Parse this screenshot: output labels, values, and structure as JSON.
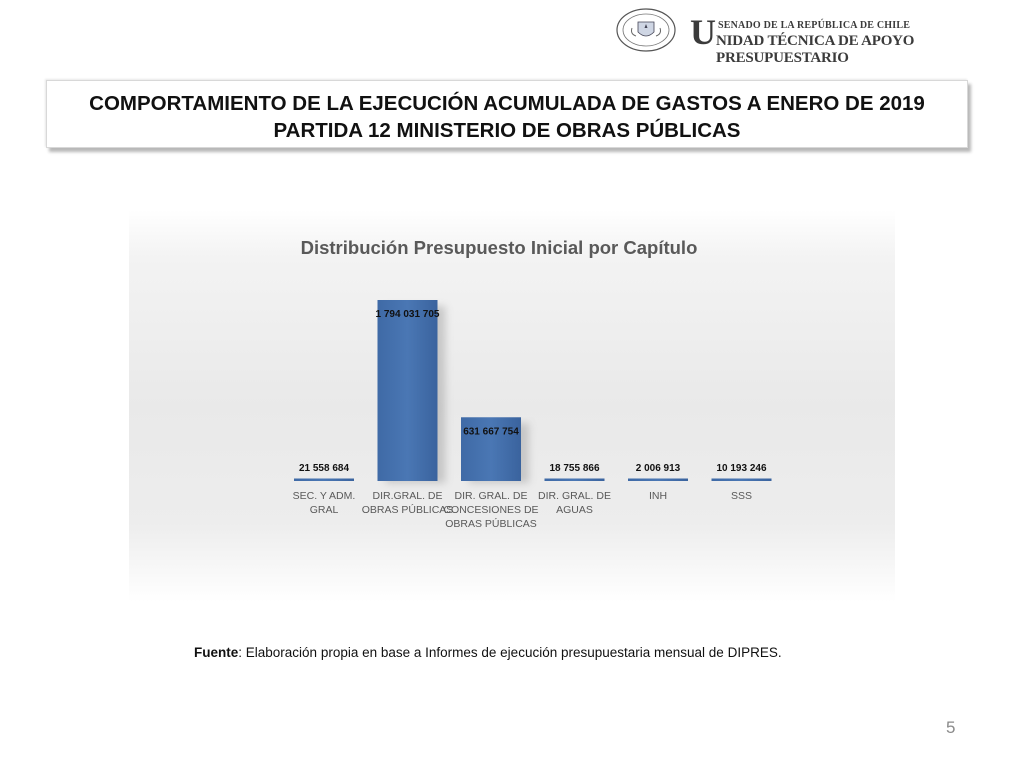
{
  "header": {
    "seal_text": "REPÚBLICA DE CHILE · SENADO",
    "org_line1": "SENADO DE LA REPÚBLICA DE CHILE",
    "org_line2_initial": "U",
    "org_line2_rest": "NIDAD TÉCNICA DE APOYO PRESUPUESTARIO"
  },
  "title": {
    "line1": "COMPORTAMIENTO DE LA EJECUCIÓN ACUMULADA DE GASTOS A ENERO DE 2019",
    "line2": "PARTIDA 12 MINISTERIO DE OBRAS PÚBLICAS"
  },
  "chart_data": {
    "type": "bar",
    "title": "Distribución Presupuesto Inicial por Capítulo",
    "categories": [
      [
        "SEC. Y ADM.",
        "GRAL"
      ],
      [
        "DIR.GRAL. DE",
        "OBRAS PÚBLICAS"
      ],
      [
        "DIR. GRAL. DE",
        "CONCESIONES DE",
        "OBRAS PÚBLICAS"
      ],
      [
        "DIR. GRAL. DE",
        "AGUAS"
      ],
      [
        "INH"
      ],
      [
        "SSS"
      ]
    ],
    "values": [
      21558684,
      1794031705,
      631667754,
      18755866,
      2006913,
      10193246
    ],
    "value_labels": [
      "21 558 684",
      "1 794 031 705",
      "631 667 754",
      "18 755 866",
      "2 006 913",
      "10 193 246"
    ],
    "xlabel": "",
    "ylabel": "",
    "ylim": [
      0,
      1794031705
    ],
    "grid": false,
    "legend": "none",
    "bar_color": "#4a77b4"
  },
  "footer": {
    "source_bold": "Fuente",
    "source_text": ": Elaboración propia en base  a Informes de ejecución presupuestaria mensual de DIPRES.",
    "page_number": "5"
  }
}
